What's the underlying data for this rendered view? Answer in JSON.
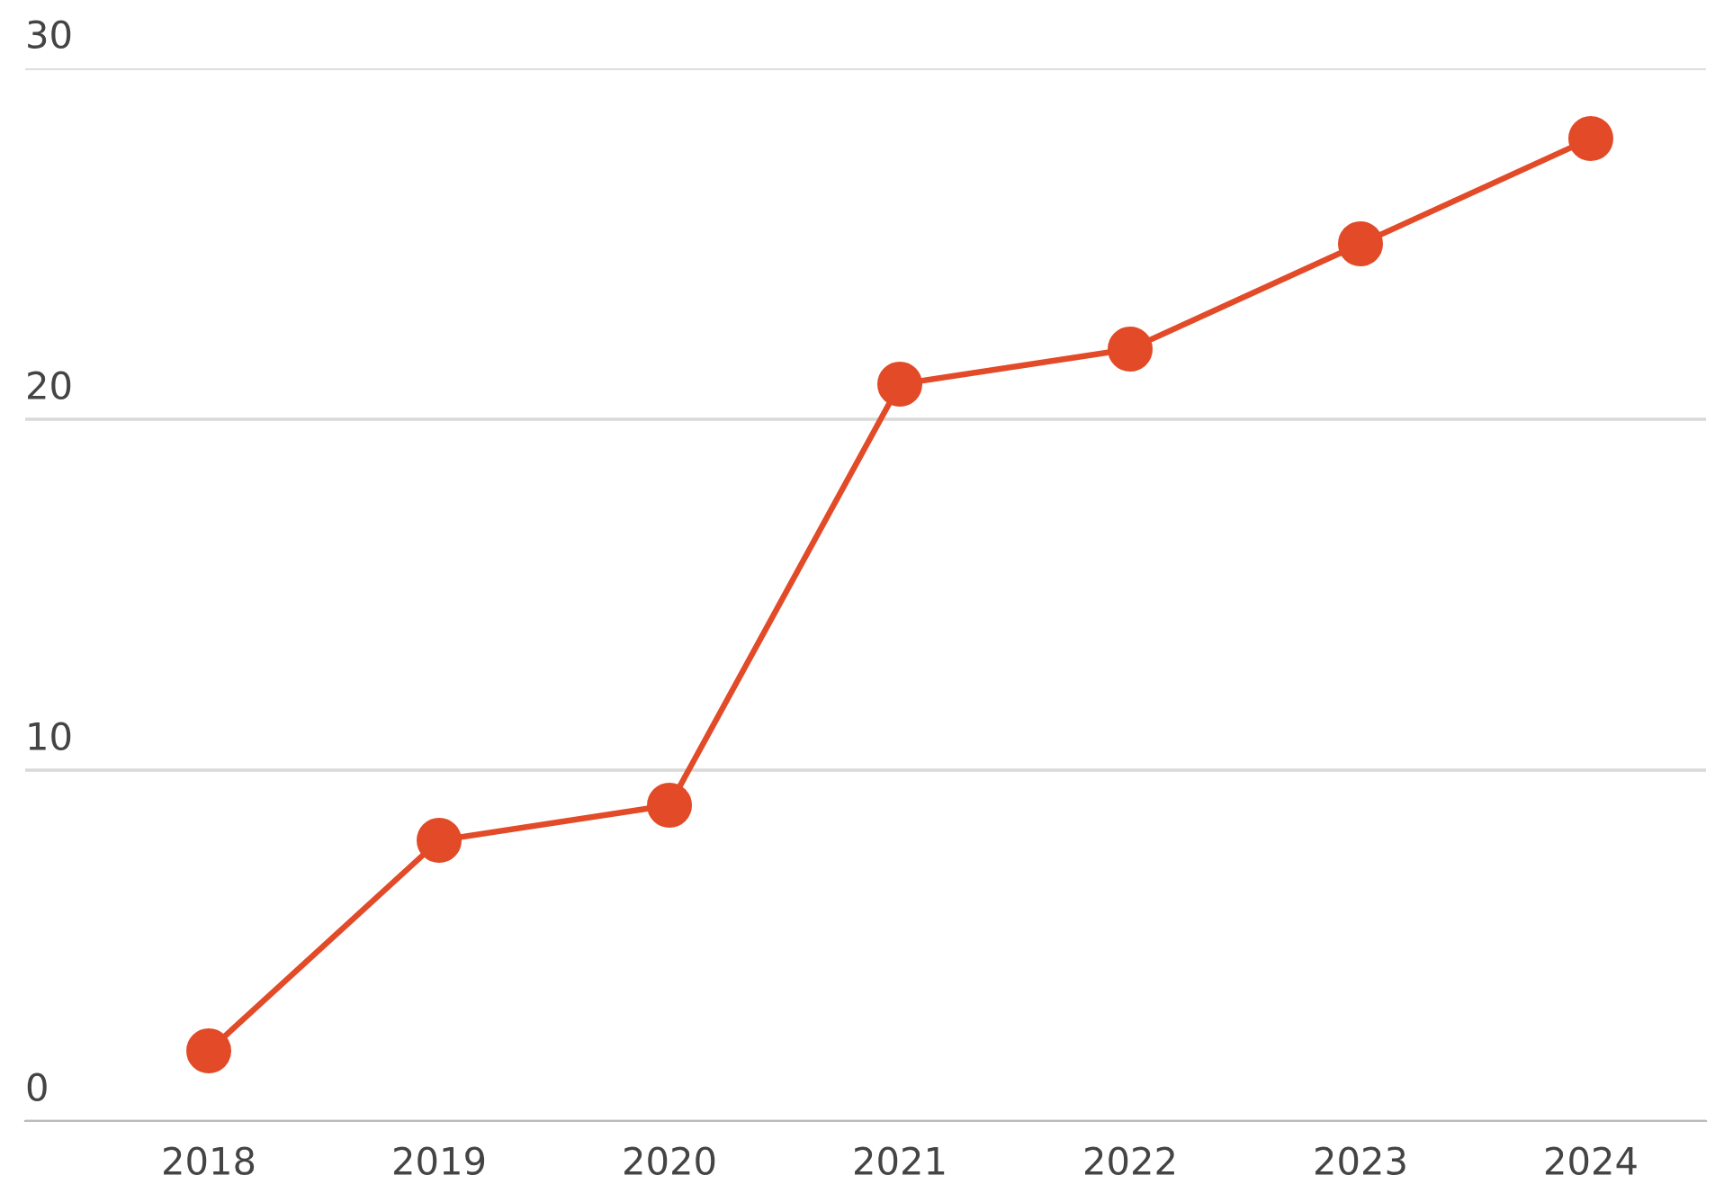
{
  "chart_data": {
    "type": "line",
    "categories": [
      "2018",
      "2019",
      "2020",
      "2021",
      "2022",
      "2023",
      "2024"
    ],
    "series": [
      {
        "color": "#e24a28",
        "values": [
          2,
          8,
          9,
          21,
          22,
          25,
          28
        ]
      }
    ],
    "ylim": [
      0,
      30
    ],
    "yticks": [
      0,
      10,
      20,
      30
    ],
    "grid": "y",
    "marker": "circle",
    "line_style": "solid"
  }
}
